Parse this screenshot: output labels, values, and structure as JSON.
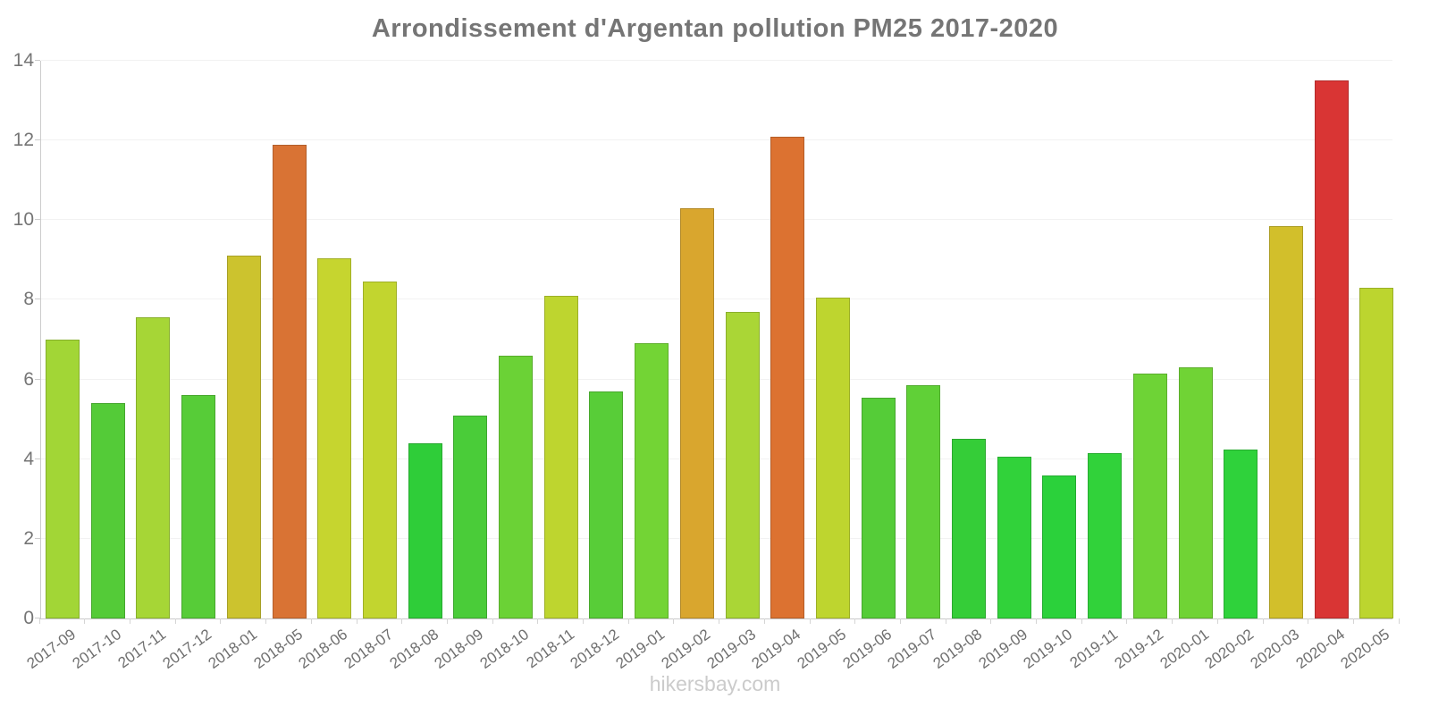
{
  "title": "Arrondissement d'Argentan pollution PM25 2017-2020",
  "footer": "hikersbay.com",
  "colors": {
    "background": "#ffffff",
    "title_text": "#757575",
    "axis_line": "#cccccc",
    "gridline": "#f2f2f2",
    "y_tick_text": "#757575",
    "x_tick_text": "#6f6f6f",
    "footer_text": "#cbcbcb"
  },
  "chart_data": {
    "type": "bar",
    "title": "Arrondissement d'Argentan pollution PM25 2017-2020",
    "xlabel": "",
    "ylabel": "",
    "ylim": [
      0,
      14
    ],
    "yticks": [
      0,
      2,
      4,
      6,
      8,
      10,
      12,
      14
    ],
    "grid": true,
    "legend": false,
    "categories": [
      "2017-09",
      "2017-10",
      "2017-11",
      "2017-12",
      "2018-01",
      "2018-05",
      "2018-06",
      "2018-07",
      "2018-08",
      "2018-09",
      "2018-10",
      "2018-11",
      "2018-12",
      "2019-01",
      "2019-02",
      "2019-03",
      "2019-04",
      "2019-05",
      "2019-06",
      "2019-07",
      "2019-08",
      "2019-09",
      "2019-10",
      "2019-11",
      "2019-12",
      "2020-01",
      "2020-02",
      "2020-03",
      "2020-04",
      "2020-05"
    ],
    "values": [
      7.0,
      5.4,
      7.55,
      5.6,
      9.1,
      11.9,
      9.05,
      8.45,
      4.4,
      5.1,
      6.6,
      8.1,
      5.7,
      6.9,
      10.3,
      7.7,
      12.1,
      8.05,
      5.55,
      5.85,
      4.5,
      4.05,
      3.6,
      4.15,
      6.15,
      6.3,
      4.25,
      9.85,
      13.5,
      8.3
    ],
    "bar_colors": [
      "#a2d636",
      "#54cb38",
      "#a6d636",
      "#57cc38",
      "#ccc32e",
      "#d97334",
      "#c6d52f",
      "#c2d52f",
      "#2fcd39",
      "#4acc39",
      "#6bd236",
      "#bed52f",
      "#58cd38",
      "#73d435",
      "#d9a62e",
      "#aad636",
      "#dc7231",
      "#bed52f",
      "#55cc38",
      "#60d037",
      "#35cd38",
      "#31d23a",
      "#2bd13b",
      "#31d23a",
      "#6ed336",
      "#70d335",
      "#2fd23b",
      "#d2bf2b",
      "#d93534",
      "#bcd52f"
    ]
  }
}
